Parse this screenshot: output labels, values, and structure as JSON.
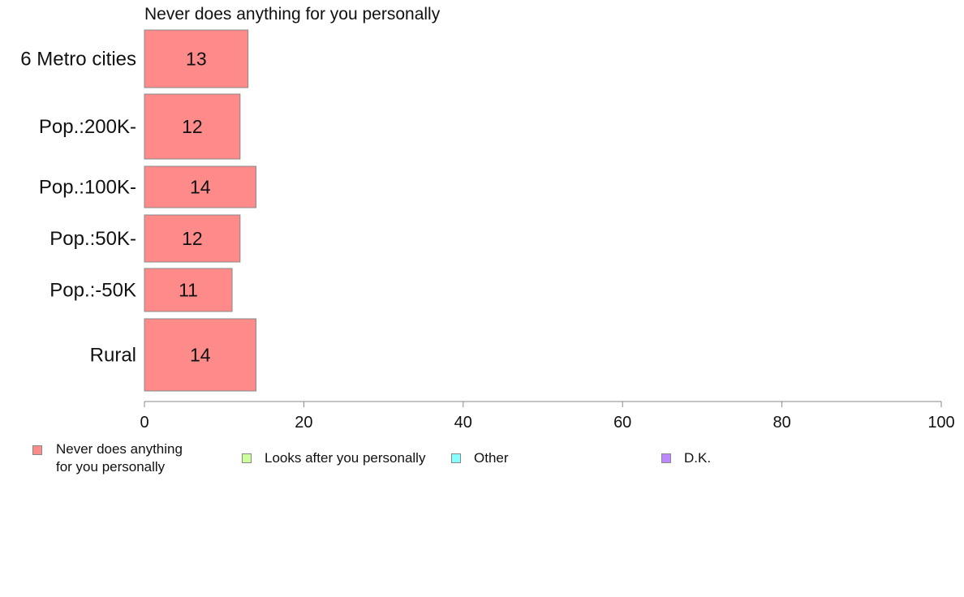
{
  "chart_data": {
    "type": "bar",
    "orientation": "horizontal",
    "title": "Never does anything for you personally",
    "categories": [
      "6 Metro cities",
      "Pop.:200K-",
      "Pop.:100K-",
      "Pop.:50K-",
      "Pop.:-50K",
      "Rural"
    ],
    "series": [
      {
        "name": "Never does anything\nfor you personally",
        "color": "#ff8a8a",
        "values": [
          13,
          12,
          14,
          12,
          11,
          14
        ]
      }
    ],
    "data_labels": [
      "13",
      "12",
      "14",
      "12",
      "11",
      "14"
    ],
    "xlim": [
      0,
      100
    ],
    "xticks": [
      0,
      20,
      40,
      60,
      80,
      100
    ],
    "xlabel": "",
    "ylabel": "",
    "grid": false,
    "legend_position": "bottom",
    "legend": [
      {
        "label": "Never does anything\nfor you personally",
        "color": "#ff8a8a"
      },
      {
        "label": "Looks after you personally",
        "color": "#ccff99"
      },
      {
        "label": "Other",
        "color": "#88ffff"
      },
      {
        "label": "D.K.",
        "color": "#bb88ff"
      }
    ]
  }
}
